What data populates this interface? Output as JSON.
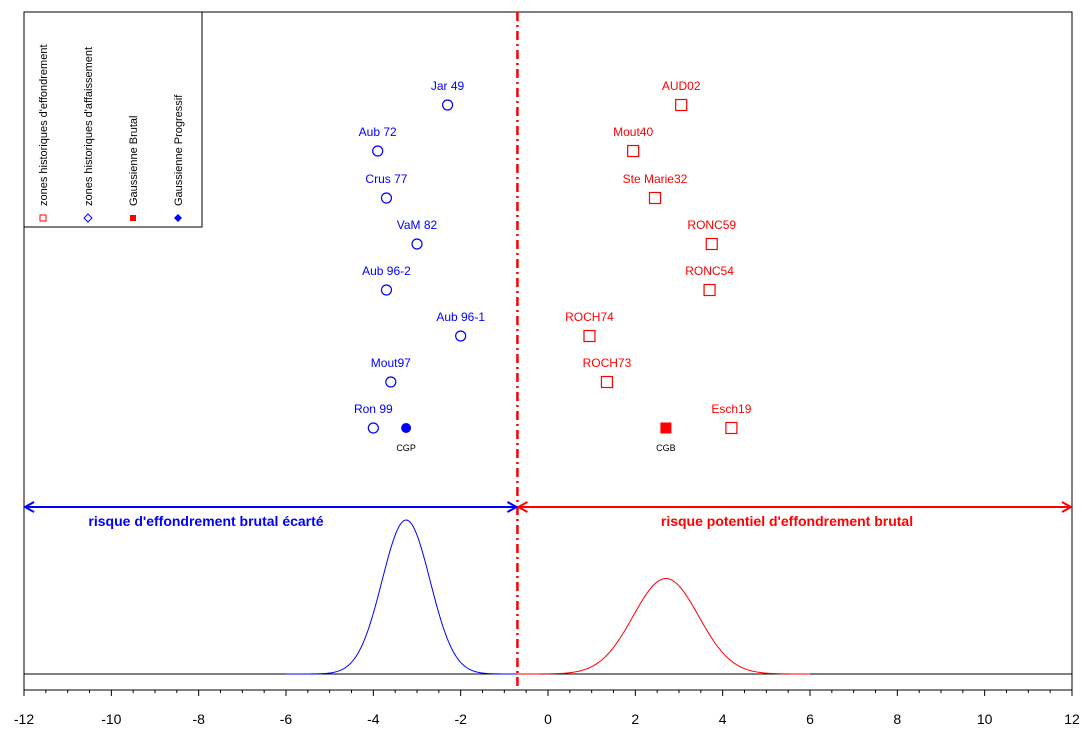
{
  "chart_data": {
    "type": "scatter",
    "xlim": [
      -12,
      12
    ],
    "x_ticks": [
      -12,
      -10,
      -8,
      -6,
      -4,
      -2,
      0,
      2,
      4,
      6,
      8,
      10,
      12
    ],
    "y_axis": "rows (top to bottom)",
    "threshold_x": -0.7,
    "legend": [
      {
        "label": "zones historiques d'effondrement",
        "marker": "open-square",
        "color": "#ff0000"
      },
      {
        "label": "zones historiques d'affaissement",
        "marker": "open-diamond",
        "color": "#0000ff"
      },
      {
        "label": "Gaussienne Brutal",
        "marker": "filled-square",
        "color": "#ff0000"
      },
      {
        "label": "Gaussienne Progressif",
        "marker": "filled-diamond",
        "color": "#0000ff"
      }
    ],
    "series": [
      {
        "name": "zones historiques d'affaissement",
        "color": "#0000ff",
        "marker": "open-circle",
        "points": [
          {
            "label": "Jar 49",
            "x": -2.3,
            "row": 1
          },
          {
            "label": "Aub 72",
            "x": -3.9,
            "row": 2
          },
          {
            "label": "Crus 77",
            "x": -3.7,
            "row": 3
          },
          {
            "label": "VaM 82",
            "x": -3.0,
            "row": 4
          },
          {
            "label": "Aub 96-2",
            "x": -3.7,
            "row": 5
          },
          {
            "label": "Aub 96-1",
            "x": -2.0,
            "row": 6
          },
          {
            "label": "Mout97",
            "x": -3.6,
            "row": 7
          },
          {
            "label": "Ron 99",
            "x": -4.0,
            "row": 8
          }
        ]
      },
      {
        "name": "zones historiques d'effondrement",
        "color": "#ff0000",
        "marker": "open-square",
        "points": [
          {
            "label": "AUD02",
            "x": 3.05,
            "row": 1
          },
          {
            "label": "Mout40",
            "x": 1.95,
            "row": 2
          },
          {
            "label": "Ste Marie32",
            "x": 2.45,
            "row": 3
          },
          {
            "label": "RONC59",
            "x": 3.75,
            "row": 4
          },
          {
            "label": "RONC54",
            "x": 3.7,
            "row": 5
          },
          {
            "label": "ROCH74",
            "x": 0.95,
            "row": 6
          },
          {
            "label": "ROCH73",
            "x": 1.35,
            "row": 7
          },
          {
            "label": "Esch19",
            "x": 4.2,
            "row": 8
          }
        ]
      },
      {
        "name": "Gaussienne Progressif",
        "color": "#0000ff",
        "marker": "filled-circle",
        "points": [
          {
            "label": "CGP",
            "x": -3.25,
            "row": 8
          }
        ]
      },
      {
        "name": "Gaussienne Brutal",
        "color": "#ff0000",
        "marker": "filled-square",
        "points": [
          {
            "label": "CGB",
            "x": 2.7,
            "row": 8
          }
        ]
      }
    ],
    "zones": {
      "left": {
        "label": "risque d'effondrement brutal écarté",
        "color": "#0000ff",
        "from": -12,
        "to": -0.7
      },
      "right": {
        "label": "risque potentiel d'effondrement brutal",
        "color": "#ff0000",
        "from": -0.7,
        "to": 12
      }
    },
    "curves": [
      {
        "name": "Gaussienne Progressif",
        "color": "#0000ff",
        "mean": -3.25,
        "sigma": 0.55,
        "x_range": [
          -6,
          -0.7
        ],
        "peak": 1.0
      },
      {
        "name": "Gaussienne Brutal",
        "color": "#ff0000",
        "mean": 2.7,
        "sigma": 0.75,
        "x_range": [
          -0.7,
          6
        ],
        "peak": 0.62
      }
    ]
  }
}
